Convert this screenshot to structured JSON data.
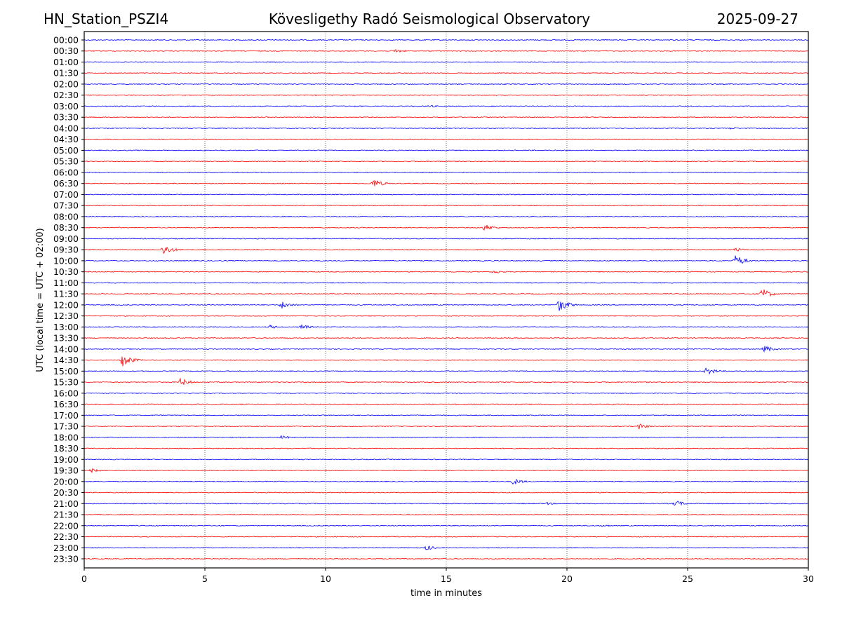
{
  "header": {
    "station": "HN_Station_PSZI4",
    "observatory": "Kövesligethy Radó Seismological Observatory",
    "date": "2025-09-27"
  },
  "chart_data": {
    "type": "line",
    "title": "Kövesligethy Radó Seismological Observatory",
    "xlabel": "time in minutes",
    "ylabel": "UTC (local time = UTC + 02:00)",
    "xlim": [
      0,
      30
    ],
    "x_ticks": [
      "0",
      "5",
      "10",
      "15",
      "20",
      "25",
      "30"
    ],
    "x_tick_values": [
      0,
      5,
      10,
      15,
      20,
      25,
      30
    ],
    "grid": "vertical dotted at x ticks",
    "colors": {
      "even_rows": "#0000ff",
      "odd_rows": "#ff0000"
    },
    "rows": [
      "00:00",
      "00:30",
      "01:00",
      "01:30",
      "02:00",
      "02:30",
      "03:00",
      "03:30",
      "04:00",
      "04:30",
      "05:00",
      "05:30",
      "06:00",
      "06:30",
      "07:00",
      "07:30",
      "08:00",
      "08:30",
      "09:00",
      "09:30",
      "10:00",
      "10:30",
      "11:00",
      "11:30",
      "12:00",
      "12:30",
      "13:00",
      "13:30",
      "14:00",
      "14:30",
      "15:00",
      "15:30",
      "16:00",
      "16:30",
      "17:00",
      "17:30",
      "18:00",
      "18:30",
      "19:00",
      "19:30",
      "20:00",
      "20:30",
      "21:00",
      "21:30",
      "22:00",
      "22:30",
      "23:00",
      "23:30"
    ],
    "events": [
      {
        "row": "00:30",
        "minute": 12.9,
        "amplitude": 3
      },
      {
        "row": "03:00",
        "minute": 14.3,
        "amplitude": 2
      },
      {
        "row": "04:00",
        "minute": 26.8,
        "amplitude": 2
      },
      {
        "row": "06:30",
        "minute": 12.0,
        "amplitude": 7
      },
      {
        "row": "08:30",
        "minute": 16.6,
        "amplitude": 5
      },
      {
        "row": "09:30",
        "minute": 3.3,
        "amplitude": 8
      },
      {
        "row": "09:30",
        "minute": 27.0,
        "amplitude": 3
      },
      {
        "row": "10:00",
        "minute": 27.0,
        "amplitude": 9
      },
      {
        "row": "10:30",
        "minute": 17.0,
        "amplitude": 3
      },
      {
        "row": "11:30",
        "minute": 28.1,
        "amplitude": 8
      },
      {
        "row": "12:00",
        "minute": 8.2,
        "amplitude": 6
      },
      {
        "row": "12:00",
        "minute": 19.7,
        "amplitude": 10
      },
      {
        "row": "13:00",
        "minute": 7.7,
        "amplitude": 3
      },
      {
        "row": "13:00",
        "minute": 9.0,
        "amplitude": 4
      },
      {
        "row": "14:00",
        "minute": 28.2,
        "amplitude": 5
      },
      {
        "row": "14:30",
        "minute": 1.6,
        "amplitude": 10
      },
      {
        "row": "15:00",
        "minute": 25.8,
        "amplitude": 6
      },
      {
        "row": "15:30",
        "minute": 4.0,
        "amplitude": 6
      },
      {
        "row": "17:30",
        "minute": 23.0,
        "amplitude": 4
      },
      {
        "row": "18:00",
        "minute": 8.2,
        "amplitude": 3
      },
      {
        "row": "19:30",
        "minute": 0.3,
        "amplitude": 3
      },
      {
        "row": "20:00",
        "minute": 17.8,
        "amplitude": 5
      },
      {
        "row": "21:00",
        "minute": 24.5,
        "amplitude": 5
      },
      {
        "row": "21:00",
        "minute": 19.2,
        "amplitude": 2
      },
      {
        "row": "22:00",
        "minute": 21.5,
        "amplitude": 2
      },
      {
        "row": "23:00",
        "minute": 14.2,
        "amplitude": 4
      }
    ]
  }
}
